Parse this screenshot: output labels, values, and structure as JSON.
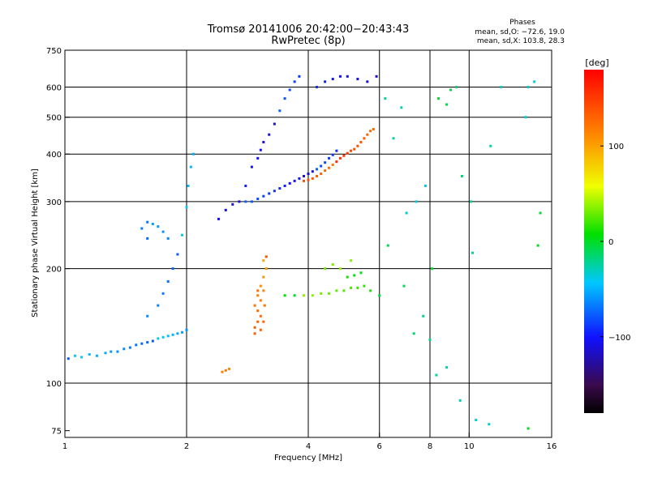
{
  "chart_data": {
    "type": "scatter",
    "title": "Tromsø 20141006 20:42:00−20:43:43",
    "subtitle": "RwPretec (8p)",
    "xlabel": "Frequency [MHz]",
    "ylabel": "Stationary phase Virtual Height [km]",
    "xscale": "log",
    "yscale": "log",
    "xlim": [
      1,
      16
    ],
    "ylim": [
      72,
      750
    ],
    "x_ticks": [
      1,
      2,
      4,
      6,
      8,
      10,
      16
    ],
    "x_tick_labels": [
      "1",
      "2",
      "4",
      "6",
      "8",
      "10",
      "16"
    ],
    "y_ticks": [
      75,
      100,
      200,
      300,
      400,
      500,
      600,
      750
    ],
    "y_tick_labels": [
      "75",
      "100",
      "200",
      "300",
      "400",
      "500",
      "600",
      "750"
    ],
    "x_gridlines": [
      2,
      4,
      6,
      8,
      10
    ],
    "y_gridlines": [
      100,
      200,
      300,
      400,
      500,
      600
    ],
    "phase_stats": {
      "heading": "Phases",
      "line_o": "mean, sd,O: −72.6, 19.0",
      "line_x": "mean, sd,X: 103.8, 28.3"
    },
    "colorbar": {
      "label": "[deg]",
      "range": [
        -180,
        180
      ],
      "ticks": [
        100,
        0,
        -100
      ],
      "tick_labels": [
        "100",
        "0",
        "−100"
      ],
      "colormap": "rainbow"
    },
    "series": [
      {
        "name": "low-frequency trace (cyan)",
        "points": [
          [
            1.02,
            116
          ],
          [
            1.06,
            118
          ],
          [
            1.1,
            117
          ],
          [
            1.15,
            119
          ],
          [
            1.2,
            118
          ],
          [
            1.26,
            120
          ],
          [
            1.3,
            121
          ],
          [
            1.35,
            121
          ],
          [
            1.4,
            123
          ],
          [
            1.45,
            124
          ],
          [
            1.5,
            126
          ],
          [
            1.55,
            127
          ],
          [
            1.6,
            128
          ],
          [
            1.65,
            129
          ],
          [
            1.7,
            131
          ],
          [
            1.75,
            132
          ],
          [
            1.8,
            133
          ],
          [
            1.85,
            134
          ],
          [
            1.9,
            135
          ],
          [
            1.95,
            136
          ],
          [
            2.0,
            138
          ],
          [
            1.6,
            150
          ],
          [
            1.7,
            160
          ],
          [
            1.75,
            172
          ],
          [
            1.8,
            185
          ],
          [
            1.85,
            200
          ],
          [
            1.9,
            218
          ],
          [
            1.95,
            245
          ],
          [
            2.0,
            290
          ],
          [
            2.02,
            330
          ],
          [
            2.05,
            370
          ],
          [
            2.08,
            400
          ],
          [
            1.65,
            262
          ],
          [
            1.7,
            258
          ],
          [
            1.75,
            250
          ],
          [
            1.8,
            240
          ],
          [
            1.55,
            255
          ],
          [
            1.6,
            265
          ],
          [
            1.6,
            240
          ]
        ],
        "phase": -60
      },
      {
        "name": "F-layer mixed trace (blue)",
        "points": [
          [
            2.4,
            270
          ],
          [
            2.5,
            285
          ],
          [
            2.6,
            295
          ],
          [
            2.7,
            300
          ],
          [
            2.8,
            300
          ],
          [
            2.9,
            300
          ],
          [
            3.0,
            305
          ],
          [
            3.1,
            310
          ],
          [
            3.2,
            315
          ],
          [
            3.3,
            320
          ],
          [
            3.4,
            325
          ],
          [
            3.5,
            330
          ],
          [
            3.6,
            335
          ],
          [
            3.7,
            340
          ],
          [
            3.8,
            345
          ],
          [
            3.9,
            350
          ],
          [
            4.0,
            355
          ],
          [
            4.1,
            360
          ],
          [
            4.2,
            365
          ],
          [
            4.3,
            372
          ],
          [
            4.4,
            380
          ],
          [
            4.5,
            390
          ],
          [
            4.6,
            398
          ],
          [
            4.7,
            408
          ],
          [
            2.8,
            330
          ],
          [
            2.9,
            370
          ],
          [
            3.0,
            390
          ],
          [
            3.05,
            410
          ],
          [
            3.1,
            430
          ],
          [
            3.2,
            450
          ],
          [
            3.3,
            480
          ],
          [
            3.4,
            520
          ],
          [
            3.5,
            560
          ],
          [
            3.6,
            590
          ],
          [
            3.7,
            620
          ],
          [
            3.8,
            640
          ],
          [
            4.2,
            600
          ],
          [
            4.4,
            620
          ],
          [
            4.6,
            630
          ],
          [
            4.8,
            640
          ],
          [
            5.0,
            640
          ],
          [
            5.3,
            630
          ],
          [
            5.6,
            620
          ],
          [
            5.9,
            640
          ]
        ],
        "phase": -95
      },
      {
        "name": "F-layer X trace (red)",
        "points": [
          [
            3.9,
            340
          ],
          [
            4.0,
            342
          ],
          [
            4.1,
            345
          ],
          [
            4.2,
            350
          ],
          [
            4.3,
            355
          ],
          [
            4.4,
            362
          ],
          [
            4.5,
            368
          ],
          [
            4.6,
            375
          ],
          [
            4.7,
            382
          ],
          [
            4.8,
            390
          ],
          [
            4.9,
            396
          ],
          [
            5.0,
            402
          ],
          [
            5.1,
            408
          ],
          [
            5.2,
            412
          ],
          [
            5.3,
            420
          ],
          [
            5.4,
            430
          ],
          [
            5.5,
            440
          ],
          [
            5.6,
            450
          ],
          [
            5.7,
            460
          ],
          [
            5.8,
            465
          ]
        ],
        "phase": 140
      },
      {
        "name": "E-region cluster (orange)",
        "points": [
          [
            2.95,
            140
          ],
          [
            3.0,
            145
          ],
          [
            3.05,
            150
          ],
          [
            3.0,
            155
          ],
          [
            2.95,
            160
          ],
          [
            3.05,
            165
          ],
          [
            3.0,
            170
          ],
          [
            3.1,
            175
          ],
          [
            3.05,
            180
          ],
          [
            3.1,
            190
          ],
          [
            3.15,
            200
          ],
          [
            3.1,
            210
          ],
          [
            3.15,
            215
          ],
          [
            2.95,
            135
          ],
          [
            3.05,
            138
          ],
          [
            3.1,
            145
          ],
          [
            3.0,
            175
          ],
          [
            3.12,
            160
          ],
          [
            2.5,
            108
          ],
          [
            2.45,
            107
          ],
          [
            2.55,
            109
          ]
        ],
        "phase": 120
      },
      {
        "name": "sporadic lower trace (cyan/green)",
        "points": [
          [
            3.5,
            170
          ],
          [
            3.7,
            170
          ],
          [
            3.9,
            170
          ],
          [
            4.1,
            170
          ],
          [
            4.3,
            172
          ],
          [
            4.5,
            172
          ],
          [
            4.7,
            175
          ],
          [
            4.9,
            175
          ],
          [
            5.1,
            178
          ],
          [
            5.3,
            178
          ],
          [
            5.5,
            180
          ],
          [
            5.7,
            175
          ],
          [
            5.0,
            190
          ],
          [
            5.2,
            192
          ],
          [
            5.4,
            195
          ],
          [
            4.8,
            200
          ],
          [
            5.1,
            210
          ],
          [
            4.6,
            205
          ],
          [
            4.4,
            200
          ]
        ],
        "phase": 20
      },
      {
        "name": "sparse high-frequency points",
        "points": [
          [
            6.2,
            560
          ],
          [
            6.5,
            440
          ],
          [
            6.8,
            530
          ],
          [
            7.0,
            280
          ],
          [
            7.4,
            300
          ],
          [
            7.8,
            330
          ],
          [
            8.1,
            200
          ],
          [
            8.4,
            560
          ],
          [
            8.8,
            540
          ],
          [
            9.0,
            590
          ],
          [
            9.3,
            600
          ],
          [
            9.6,
            350
          ],
          [
            10.1,
            300
          ],
          [
            10.2,
            220
          ],
          [
            11.3,
            420
          ],
          [
            12.0,
            600
          ],
          [
            13.8,
            500
          ],
          [
            14.0,
            600
          ],
          [
            14.5,
            620
          ],
          [
            14.8,
            230
          ],
          [
            15.0,
            280
          ],
          [
            6.0,
            170
          ],
          [
            6.3,
            230
          ],
          [
            6.9,
            180
          ],
          [
            7.3,
            135
          ],
          [
            7.7,
            150
          ],
          [
            8.0,
            130
          ],
          [
            8.3,
            105
          ],
          [
            8.8,
            110
          ],
          [
            9.5,
            90
          ],
          [
            10.4,
            80
          ],
          [
            11.2,
            78
          ],
          [
            14.0,
            76
          ]
        ],
        "phase": -20
      }
    ]
  }
}
